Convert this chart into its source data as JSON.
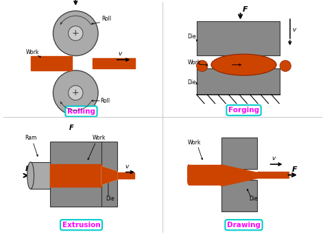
{
  "bg_color": "#ffffff",
  "gray_color": "#888888",
  "gray_light": "#aaaaaa",
  "work_color": "#CC4400",
  "label_color": "#FF00FF",
  "box_border_color": "#00CCCC",
  "panels": [
    "Rolling",
    "Forging",
    "Extrusion",
    "Drawing"
  ]
}
